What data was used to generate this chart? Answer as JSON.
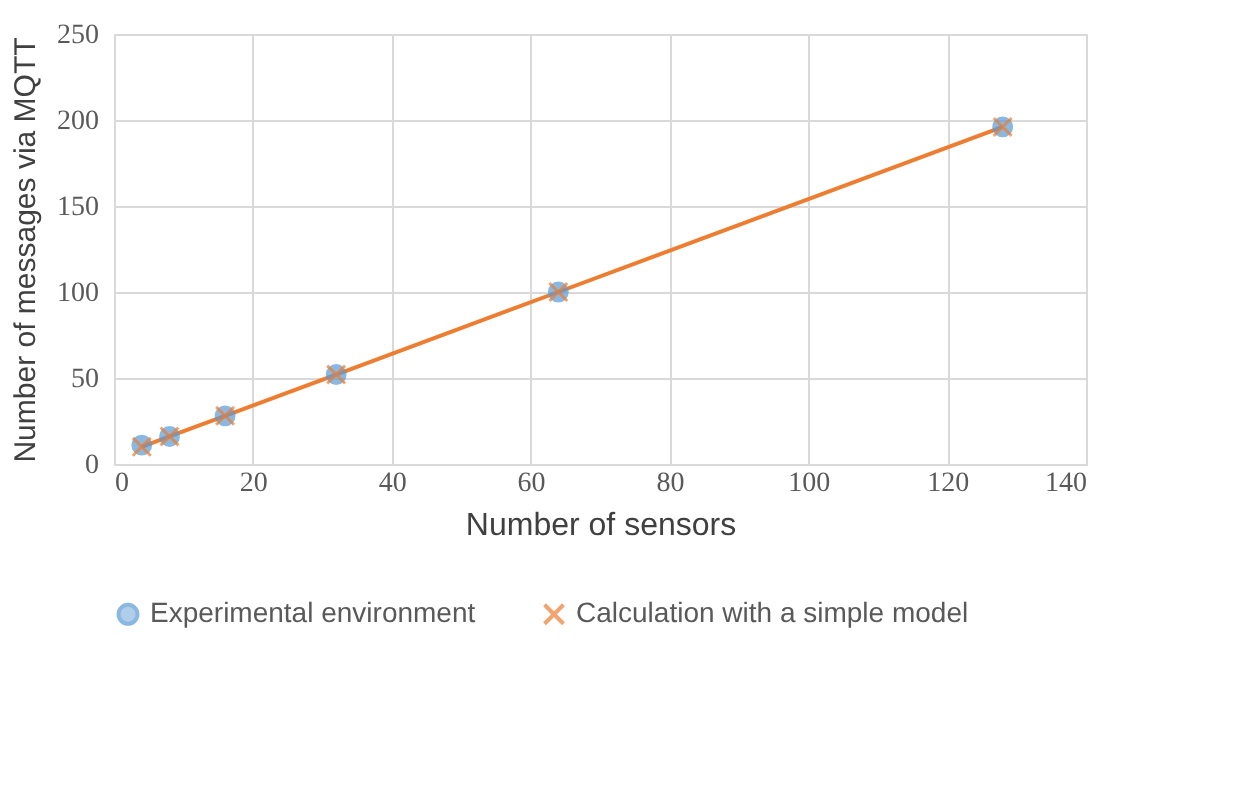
{
  "chart_data": {
    "type": "scatter",
    "xlabel": "Number of sensors",
    "ylabel": "Number of messages via MQTT",
    "x": [
      4,
      8,
      16,
      32,
      64,
      128
    ],
    "series": [
      {
        "name": "Experimental environment",
        "color": "#5b9bd5",
        "marker": "circle",
        "values": [
          11,
          16,
          28,
          52,
          100,
          196
        ]
      },
      {
        "name": "Calculation with a simple model",
        "type": "line",
        "color": "#ed7d31",
        "marker": "cross",
        "line_style": "solid",
        "values": [
          10,
          16,
          28,
          52,
          100,
          196
        ]
      }
    ],
    "xlim": [
      0,
      140
    ],
    "xticks": [
      0,
      20,
      40,
      60,
      80,
      100,
      120,
      140
    ],
    "ylim": [
      0,
      250
    ],
    "yticks": [
      0,
      50,
      100,
      150,
      200,
      250
    ],
    "grid": true,
    "legend": "bottom"
  }
}
